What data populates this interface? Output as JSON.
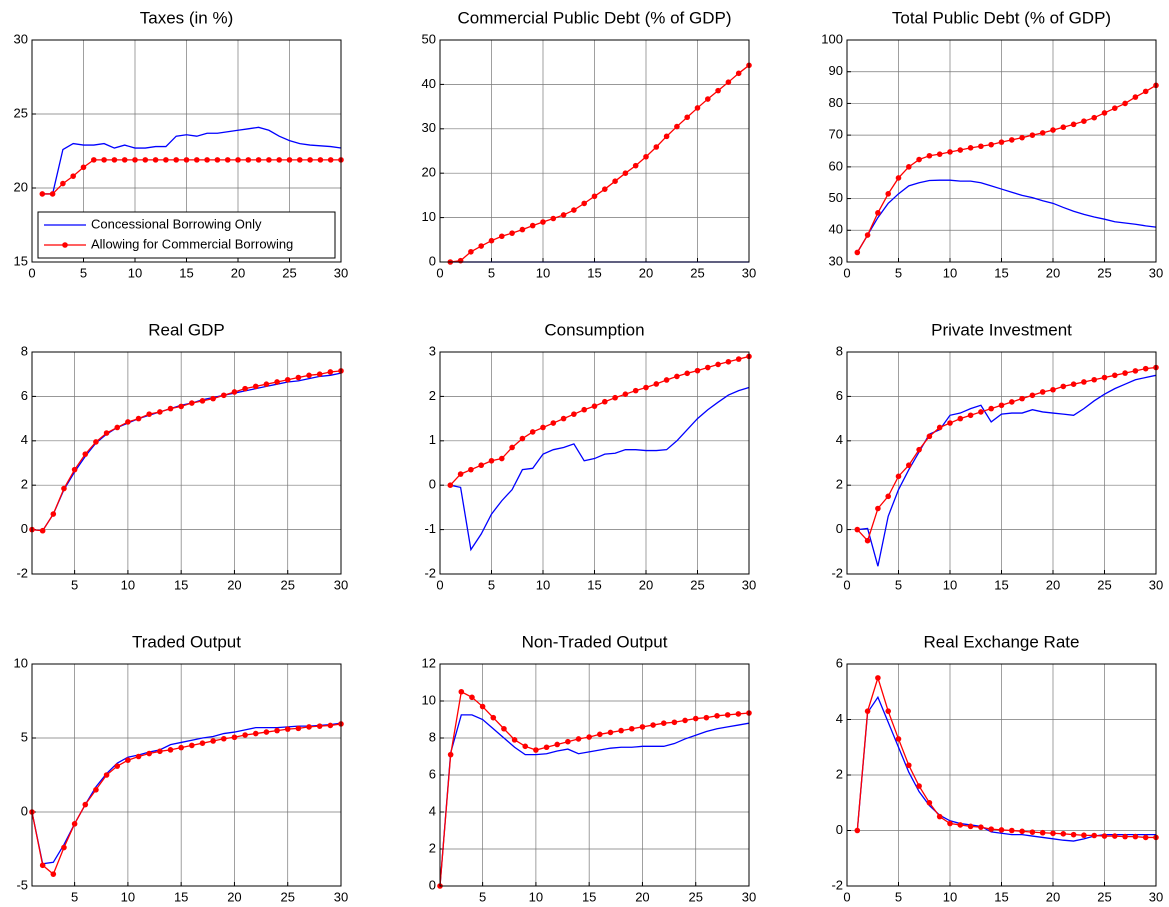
{
  "chart_data": [
    {
      "type": "line",
      "title": "Taxes (in %)",
      "x": [
        1,
        2,
        3,
        4,
        5,
        6,
        7,
        8,
        9,
        10,
        11,
        12,
        13,
        14,
        15,
        16,
        17,
        18,
        19,
        20,
        21,
        22,
        23,
        24,
        25,
        26,
        27,
        28,
        29,
        30
      ],
      "xlim": [
        0,
        30
      ],
      "xticks": [
        0,
        5,
        10,
        15,
        20,
        25,
        30
      ],
      "ylim": [
        15,
        30
      ],
      "yticks": [
        15,
        20,
        25,
        30
      ],
      "grid": true,
      "legend": "lower left",
      "series": [
        {
          "name": "Concessional Borrowing Only",
          "color": "#0000ff",
          "marker": "none",
          "values": [
            19.6,
            19.6,
            22.6,
            23.0,
            22.9,
            22.9,
            23.0,
            22.7,
            22.9,
            22.7,
            22.7,
            22.8,
            22.8,
            23.5,
            23.6,
            23.5,
            23.7,
            23.7,
            23.8,
            23.9,
            24.0,
            24.1,
            23.9,
            23.5,
            23.2,
            23.0,
            22.9,
            22.85,
            22.8,
            22.7
          ]
        },
        {
          "name": "Allowing for Commercial Borrowing",
          "color": "#ff0000",
          "marker": "dot",
          "values": [
            19.6,
            19.6,
            20.3,
            20.8,
            21.4,
            21.9,
            21.9,
            21.9,
            21.9,
            21.9,
            21.9,
            21.9,
            21.9,
            21.9,
            21.9,
            21.9,
            21.9,
            21.9,
            21.9,
            21.9,
            21.9,
            21.9,
            21.9,
            21.9,
            21.9,
            21.9,
            21.9,
            21.9,
            21.9,
            21.9
          ]
        }
      ]
    },
    {
      "type": "line",
      "title": "Commercial Public Debt (% of GDP)",
      "x": [
        1,
        2,
        3,
        4,
        5,
        6,
        7,
        8,
        9,
        10,
        11,
        12,
        13,
        14,
        15,
        16,
        17,
        18,
        19,
        20,
        21,
        22,
        23,
        24,
        25,
        26,
        27,
        28,
        29,
        30
      ],
      "xlim": [
        0,
        30
      ],
      "xticks": [
        0,
        5,
        10,
        15,
        20,
        25,
        30
      ],
      "ylim": [
        0,
        50
      ],
      "yticks": [
        0,
        10,
        20,
        30,
        40,
        50
      ],
      "grid": true,
      "series": [
        {
          "color": "#0000ff",
          "marker": "none",
          "values": [
            0,
            0,
            0,
            0,
            0,
            0,
            0,
            0,
            0,
            0,
            0,
            0,
            0,
            0,
            0,
            0,
            0,
            0,
            0,
            0,
            0,
            0,
            0,
            0,
            0,
            0,
            0,
            0,
            0,
            0
          ]
        },
        {
          "color": "#ff0000",
          "marker": "dot",
          "values": [
            0,
            0.3,
            2.3,
            3.6,
            4.8,
            5.8,
            6.5,
            7.3,
            8.2,
            9.0,
            9.8,
            10.6,
            11.7,
            13.2,
            14.8,
            16.4,
            18.2,
            20.0,
            21.7,
            23.7,
            25.9,
            28.3,
            30.5,
            32.6,
            34.7,
            36.7,
            38.6,
            40.5,
            42.5,
            44.3
          ]
        }
      ]
    },
    {
      "type": "line",
      "title": "Total Public Debt (% of GDP)",
      "x": [
        1,
        2,
        3,
        4,
        5,
        6,
        7,
        8,
        9,
        10,
        11,
        12,
        13,
        14,
        15,
        16,
        17,
        18,
        19,
        20,
        21,
        22,
        23,
        24,
        25,
        26,
        27,
        28,
        29,
        30
      ],
      "xlim": [
        0,
        30
      ],
      "xticks": [
        0,
        5,
        10,
        15,
        20,
        25,
        30
      ],
      "ylim": [
        30,
        100
      ],
      "yticks": [
        30,
        40,
        50,
        60,
        70,
        80,
        90,
        100
      ],
      "grid": true,
      "series": [
        {
          "color": "#0000ff",
          "marker": "none",
          "values": [
            33,
            38.5,
            44,
            48.5,
            51.5,
            54,
            55,
            55.7,
            55.8,
            55.8,
            55.5,
            55.5,
            55,
            54,
            53,
            52,
            51,
            50.3,
            49.3,
            48.5,
            47.2,
            46,
            45,
            44.2,
            43.5,
            42.7,
            42.3,
            41.9,
            41.4,
            41.0
          ]
        },
        {
          "color": "#ff0000",
          "marker": "dot",
          "values": [
            33,
            38.5,
            45.5,
            51.5,
            56.5,
            60,
            62.3,
            63.5,
            64,
            64.7,
            65.3,
            66,
            66.5,
            67,
            67.8,
            68.5,
            69.2,
            70,
            70.7,
            71.6,
            72.5,
            73.4,
            74.4,
            75.5,
            77,
            78.5,
            80,
            82,
            83.8,
            85.7
          ]
        }
      ]
    },
    {
      "type": "line",
      "title": "Real GDP",
      "x": [
        1,
        2,
        3,
        4,
        5,
        6,
        7,
        8,
        9,
        10,
        11,
        12,
        13,
        14,
        15,
        16,
        17,
        18,
        19,
        20,
        21,
        22,
        23,
        24,
        25,
        26,
        27,
        28,
        29,
        30
      ],
      "xlim": [
        1,
        30
      ],
      "xticks": [
        5,
        10,
        15,
        20,
        25,
        30
      ],
      "ylim": [
        -2,
        8
      ],
      "yticks": [
        -2,
        0,
        2,
        4,
        6,
        8
      ],
      "grid": true,
      "series": [
        {
          "color": "#0000ff",
          "marker": "none",
          "values": [
            0,
            -0.05,
            0.7,
            1.8,
            2.6,
            3.3,
            3.9,
            4.3,
            4.6,
            4.8,
            5.0,
            5.15,
            5.3,
            5.45,
            5.6,
            5.7,
            5.85,
            5.95,
            6.05,
            6.15,
            6.25,
            6.35,
            6.45,
            6.55,
            6.65,
            6.7,
            6.8,
            6.9,
            6.95,
            7.05
          ]
        },
        {
          "color": "#ff0000",
          "marker": "dot",
          "values": [
            0,
            -0.05,
            0.7,
            1.85,
            2.7,
            3.4,
            3.95,
            4.35,
            4.6,
            4.85,
            5.0,
            5.2,
            5.3,
            5.45,
            5.55,
            5.7,
            5.8,
            5.9,
            6.05,
            6.2,
            6.35,
            6.45,
            6.55,
            6.65,
            6.75,
            6.85,
            6.95,
            7.0,
            7.1,
            7.15
          ]
        }
      ]
    },
    {
      "type": "line",
      "title": "Consumption",
      "x": [
        1,
        2,
        3,
        4,
        5,
        6,
        7,
        8,
        9,
        10,
        11,
        12,
        13,
        14,
        15,
        16,
        17,
        18,
        19,
        20,
        21,
        22,
        23,
        24,
        25,
        26,
        27,
        28,
        29,
        30
      ],
      "xlim": [
        0,
        30
      ],
      "xticks": [
        0,
        5,
        10,
        15,
        20,
        25,
        30
      ],
      "ylim": [
        -2,
        3
      ],
      "yticks": [
        -2,
        -1,
        0,
        1,
        2,
        3
      ],
      "grid": true,
      "series": [
        {
          "color": "#0000ff",
          "marker": "none",
          "values": [
            0,
            -0.05,
            -1.45,
            -1.1,
            -0.65,
            -0.35,
            -0.1,
            0.35,
            0.38,
            0.7,
            0.8,
            0.85,
            0.93,
            0.55,
            0.6,
            0.7,
            0.72,
            0.8,
            0.8,
            0.78,
            0.78,
            0.8,
            1.0,
            1.25,
            1.5,
            1.7,
            1.87,
            2.03,
            2.13,
            2.2
          ]
        },
        {
          "color": "#ff0000",
          "marker": "dot",
          "values": [
            0,
            0.25,
            0.35,
            0.45,
            0.55,
            0.6,
            0.85,
            1.05,
            1.2,
            1.3,
            1.4,
            1.5,
            1.6,
            1.7,
            1.78,
            1.88,
            1.97,
            2.05,
            2.13,
            2.2,
            2.28,
            2.37,
            2.45,
            2.52,
            2.58,
            2.65,
            2.72,
            2.78,
            2.84,
            2.9
          ]
        }
      ]
    },
    {
      "type": "line",
      "title": "Private Investment",
      "x": [
        1,
        2,
        3,
        4,
        5,
        6,
        7,
        8,
        9,
        10,
        11,
        12,
        13,
        14,
        15,
        16,
        17,
        18,
        19,
        20,
        21,
        22,
        23,
        24,
        25,
        26,
        27,
        28,
        29,
        30
      ],
      "xlim": [
        0,
        30
      ],
      "xticks": [
        0,
        5,
        10,
        15,
        20,
        25,
        30
      ],
      "ylim": [
        -2,
        8
      ],
      "yticks": [
        -2,
        0,
        2,
        4,
        6,
        8
      ],
      "grid": true,
      "series": [
        {
          "color": "#0000ff",
          "marker": "none",
          "values": [
            0,
            0.05,
            -1.65,
            0.6,
            1.8,
            2.7,
            3.5,
            4.3,
            4.5,
            5.15,
            5.25,
            5.45,
            5.6,
            4.85,
            5.2,
            5.25,
            5.25,
            5.4,
            5.3,
            5.25,
            5.2,
            5.15,
            5.45,
            5.8,
            6.1,
            6.35,
            6.55,
            6.75,
            6.85,
            6.95
          ]
        },
        {
          "color": "#ff0000",
          "marker": "dot",
          "values": [
            0,
            -0.5,
            0.95,
            1.5,
            2.4,
            2.9,
            3.6,
            4.2,
            4.6,
            4.8,
            5.0,
            5.15,
            5.3,
            5.45,
            5.6,
            5.75,
            5.9,
            6.05,
            6.2,
            6.3,
            6.45,
            6.55,
            6.65,
            6.75,
            6.85,
            6.95,
            7.05,
            7.15,
            7.25,
            7.3
          ]
        }
      ]
    },
    {
      "type": "line",
      "title": "Traded Output",
      "x": [
        1,
        2,
        3,
        4,
        5,
        6,
        7,
        8,
        9,
        10,
        11,
        12,
        13,
        14,
        15,
        16,
        17,
        18,
        19,
        20,
        21,
        22,
        23,
        24,
        25,
        26,
        27,
        28,
        29,
        30
      ],
      "xlim": [
        1,
        30
      ],
      "xticks": [
        5,
        10,
        15,
        20,
        25,
        30
      ],
      "ylim": [
        -5,
        10
      ],
      "yticks": [
        -5,
        0,
        5,
        10
      ],
      "grid": true,
      "series": [
        {
          "color": "#0000ff",
          "marker": "none",
          "values": [
            0,
            -3.5,
            -3.4,
            -2.2,
            -0.8,
            0.5,
            1.7,
            2.6,
            3.3,
            3.7,
            3.85,
            4.05,
            4.2,
            4.55,
            4.7,
            4.85,
            5.0,
            5.1,
            5.3,
            5.4,
            5.55,
            5.7,
            5.7,
            5.7,
            5.75,
            5.8,
            5.8,
            5.85,
            5.9,
            6.0
          ]
        },
        {
          "color": "#ff0000",
          "marker": "dot",
          "values": [
            0,
            -3.6,
            -4.2,
            -2.4,
            -0.8,
            0.5,
            1.5,
            2.5,
            3.1,
            3.5,
            3.75,
            3.95,
            4.1,
            4.2,
            4.35,
            4.5,
            4.65,
            4.8,
            4.95,
            5.05,
            5.2,
            5.3,
            5.4,
            5.5,
            5.6,
            5.65,
            5.75,
            5.8,
            5.85,
            5.95
          ]
        }
      ]
    },
    {
      "type": "line",
      "title": "Non-Traded Output",
      "x": [
        1,
        2,
        3,
        4,
        5,
        6,
        7,
        8,
        9,
        10,
        11,
        12,
        13,
        14,
        15,
        16,
        17,
        18,
        19,
        20,
        21,
        22,
        23,
        24,
        25,
        26,
        27,
        28,
        29,
        30
      ],
      "xlim": [
        1,
        30
      ],
      "xticks": [
        5,
        10,
        15,
        20,
        25,
        30
      ],
      "ylim": [
        0,
        12
      ],
      "yticks": [
        0,
        2,
        4,
        6,
        8,
        10,
        12
      ],
      "grid": true,
      "series": [
        {
          "color": "#0000ff",
          "marker": "none",
          "values": [
            0,
            7.2,
            9.25,
            9.25,
            9.0,
            8.5,
            8.0,
            7.5,
            7.1,
            7.1,
            7.15,
            7.3,
            7.4,
            7.15,
            7.25,
            7.35,
            7.45,
            7.5,
            7.5,
            7.55,
            7.55,
            7.55,
            7.7,
            7.95,
            8.15,
            8.35,
            8.5,
            8.6,
            8.7,
            8.8
          ]
        },
        {
          "color": "#ff0000",
          "marker": "dot",
          "values": [
            0,
            7.1,
            10.5,
            10.2,
            9.7,
            9.1,
            8.5,
            7.9,
            7.55,
            7.35,
            7.5,
            7.65,
            7.8,
            7.95,
            8.05,
            8.2,
            8.3,
            8.4,
            8.5,
            8.6,
            8.7,
            8.8,
            8.85,
            8.95,
            9.05,
            9.1,
            9.2,
            9.25,
            9.3,
            9.35
          ]
        }
      ]
    },
    {
      "type": "line",
      "title": "Real Exchange Rate",
      "x": [
        1,
        2,
        3,
        4,
        5,
        6,
        7,
        8,
        9,
        10,
        11,
        12,
        13,
        14,
        15,
        16,
        17,
        18,
        19,
        20,
        21,
        22,
        23,
        24,
        25,
        26,
        27,
        28,
        29,
        30
      ],
      "xlim": [
        0,
        30
      ],
      "xticks": [
        0,
        5,
        10,
        15,
        20,
        25,
        30
      ],
      "ylim": [
        -2,
        6
      ],
      "yticks": [
        -2,
        0,
        2,
        4,
        6
      ],
      "grid": true,
      "series": [
        {
          "color": "#0000ff",
          "marker": "none",
          "values": [
            0,
            4.25,
            4.8,
            3.9,
            3.0,
            2.1,
            1.4,
            0.9,
            0.55,
            0.35,
            0.25,
            0.2,
            0.15,
            -0.05,
            -0.1,
            -0.15,
            -0.15,
            -0.2,
            -0.25,
            -0.3,
            -0.35,
            -0.38,
            -0.3,
            -0.2,
            -0.15,
            -0.15,
            -0.15,
            -0.15,
            -0.15,
            -0.15
          ]
        },
        {
          "color": "#ff0000",
          "marker": "dot",
          "values": [
            0,
            4.3,
            5.5,
            4.3,
            3.3,
            2.35,
            1.6,
            1.0,
            0.5,
            0.25,
            0.2,
            0.15,
            0.12,
            0.05,
            0.02,
            0.0,
            -0.03,
            -0.06,
            -0.08,
            -0.1,
            -0.12,
            -0.15,
            -0.17,
            -0.18,
            -0.2,
            -0.2,
            -0.22,
            -0.22,
            -0.25,
            -0.25
          ]
        }
      ]
    }
  ]
}
